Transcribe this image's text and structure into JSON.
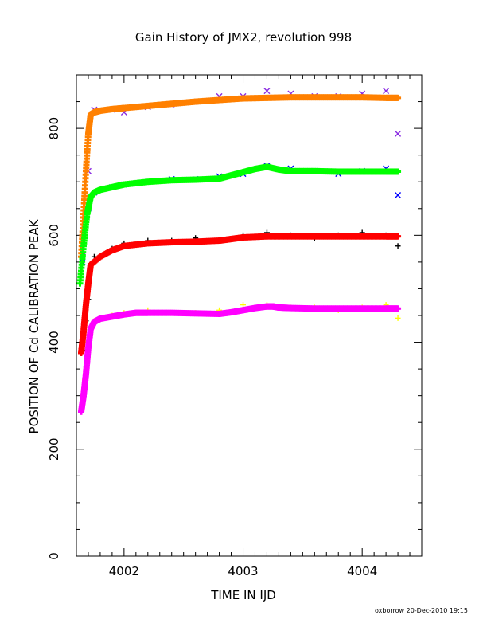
{
  "chart_data": {
    "type": "scatter",
    "title": "Gain History of JMX2, revolution 998",
    "xlabel": "TIME IN IJD",
    "ylabel": "POSITION OF Cd CALIBRATION PEAK",
    "xlim": [
      4001.6,
      4004.5
    ],
    "ylim": [
      0,
      900
    ],
    "x_ticks": [
      "4002",
      "4003",
      "4004"
    ],
    "y_ticks": [
      "0",
      "200",
      "400",
      "600",
      "800"
    ],
    "grid": false,
    "series": [
      {
        "role": "data",
        "marker": "x",
        "color": "#8a2be2",
        "x": [
          4001.65,
          4001.7,
          4001.75,
          4001.9,
          4002.0,
          4002.2,
          4002.4,
          4002.6,
          4002.8,
          4003.0,
          4003.2,
          4003.4,
          4003.6,
          4003.8,
          4004.0,
          4004.2,
          4004.3
        ],
        "y": [
          570,
          720,
          835,
          835,
          830,
          840,
          845,
          850,
          860,
          860,
          870,
          865,
          860,
          860,
          865,
          870,
          790
        ]
      },
      {
        "role": "fit",
        "marker": "+",
        "color": "#ff8000",
        "x": [
          4001.64,
          4001.66,
          4001.68,
          4001.7,
          4001.72,
          4001.75,
          4001.8,
          4001.9,
          4002.0,
          4002.2,
          4002.4,
          4002.6,
          4002.8,
          4003.0,
          4003.2,
          4003.4,
          4003.6,
          4003.8,
          4004.0,
          4004.2,
          4004.3
        ],
        "y": [
          560,
          640,
          720,
          790,
          826,
          830,
          833,
          836,
          838,
          842,
          846,
          850,
          853,
          856,
          857,
          858,
          858,
          858,
          858,
          857,
          857
        ]
      },
      {
        "role": "data",
        "marker": "x",
        "color": "#0000ff",
        "x": [
          4001.65,
          4001.7,
          4001.75,
          4001.9,
          4002.0,
          4002.2,
          4002.4,
          4002.6,
          4002.8,
          4003.0,
          4003.2,
          4003.4,
          4003.6,
          4003.8,
          4004.0,
          4004.2,
          4004.3
        ],
        "y": [
          550,
          650,
          680,
          690,
          695,
          700,
          705,
          705,
          710,
          715,
          730,
          725,
          720,
          715,
          720,
          725,
          675
        ]
      },
      {
        "role": "fit",
        "marker": "+",
        "color": "#00ff00",
        "x": [
          4001.63,
          4001.66,
          4001.69,
          4001.72,
          4001.75,
          4001.8,
          4001.9,
          4002.0,
          4002.2,
          4002.4,
          4002.6,
          4002.8,
          4002.9,
          4003.0,
          4003.1,
          4003.2,
          4003.3,
          4003.4,
          4003.6,
          4003.8,
          4004.0,
          4004.2,
          4004.3
        ],
        "y": [
          510,
          580,
          640,
          672,
          680,
          685,
          690,
          695,
          700,
          703,
          704,
          706,
          712,
          718,
          724,
          728,
          723,
          720,
          720,
          719,
          719,
          719,
          719
        ]
      },
      {
        "role": "data",
        "marker": "+",
        "color": "#000000",
        "x": [
          4001.65,
          4001.68,
          4001.7,
          4001.75,
          4001.9,
          4002.0,
          4002.2,
          4002.4,
          4002.6,
          4002.8,
          4003.0,
          4003.2,
          4003.4,
          4003.6,
          4003.8,
          4004.0,
          4004.2,
          4004.3
        ],
        "y": [
          385,
          440,
          480,
          560,
          575,
          585,
          590,
          590,
          595,
          590,
          600,
          605,
          600,
          595,
          600,
          605,
          600,
          580
        ]
      },
      {
        "role": "fit",
        "marker": "+",
        "color": "#ff0000",
        "x": [
          4001.64,
          4001.66,
          4001.68,
          4001.7,
          4001.72,
          4001.8,
          4001.9,
          4002.0,
          4002.2,
          4002.4,
          4002.6,
          4002.8,
          4002.9,
          4003.0,
          4003.2,
          4003.4,
          4003.6,
          4003.8,
          4004.0,
          4004.2,
          4004.3
        ],
        "y": [
          380,
          420,
          470,
          510,
          545,
          560,
          572,
          580,
          585,
          587,
          588,
          590,
          593,
          596,
          598,
          598,
          598,
          598,
          598,
          598,
          598
        ]
      },
      {
        "role": "data",
        "marker": "+",
        "color": "#ffff00",
        "x": [
          4001.64,
          4001.67,
          4001.7,
          4001.75,
          4001.9,
          4002.0,
          4002.2,
          4002.4,
          4002.6,
          4002.8,
          4003.0,
          4003.2,
          4003.4,
          4003.6,
          4003.8,
          4004.0,
          4004.2,
          4004.3
        ],
        "y": [
          275,
          330,
          400,
          440,
          450,
          455,
          460,
          455,
          455,
          460,
          470,
          470,
          465,
          465,
          460,
          465,
          470,
          445
        ]
      },
      {
        "role": "fit",
        "marker": "+",
        "color": "#ff00ff",
        "x": [
          4001.64,
          4001.66,
          4001.68,
          4001.7,
          4001.72,
          4001.75,
          4001.8,
          4001.9,
          4002.0,
          4002.1,
          4002.2,
          4002.4,
          4002.6,
          4002.8,
          4002.9,
          4003.0,
          4003.1,
          4003.2,
          4003.25,
          4003.3,
          4003.4,
          4003.6,
          4003.8,
          4004.0,
          4004.2,
          4004.3
        ],
        "y": [
          270,
          300,
          340,
          390,
          425,
          438,
          444,
          448,
          452,
          455,
          455,
          455,
          454,
          453,
          456,
          460,
          464,
          467,
          467,
          465,
          464,
          463,
          463,
          463,
          463,
          463
        ]
      }
    ]
  },
  "footer": {
    "credit": "oxborrow 20-Dec-2010 19:15"
  }
}
